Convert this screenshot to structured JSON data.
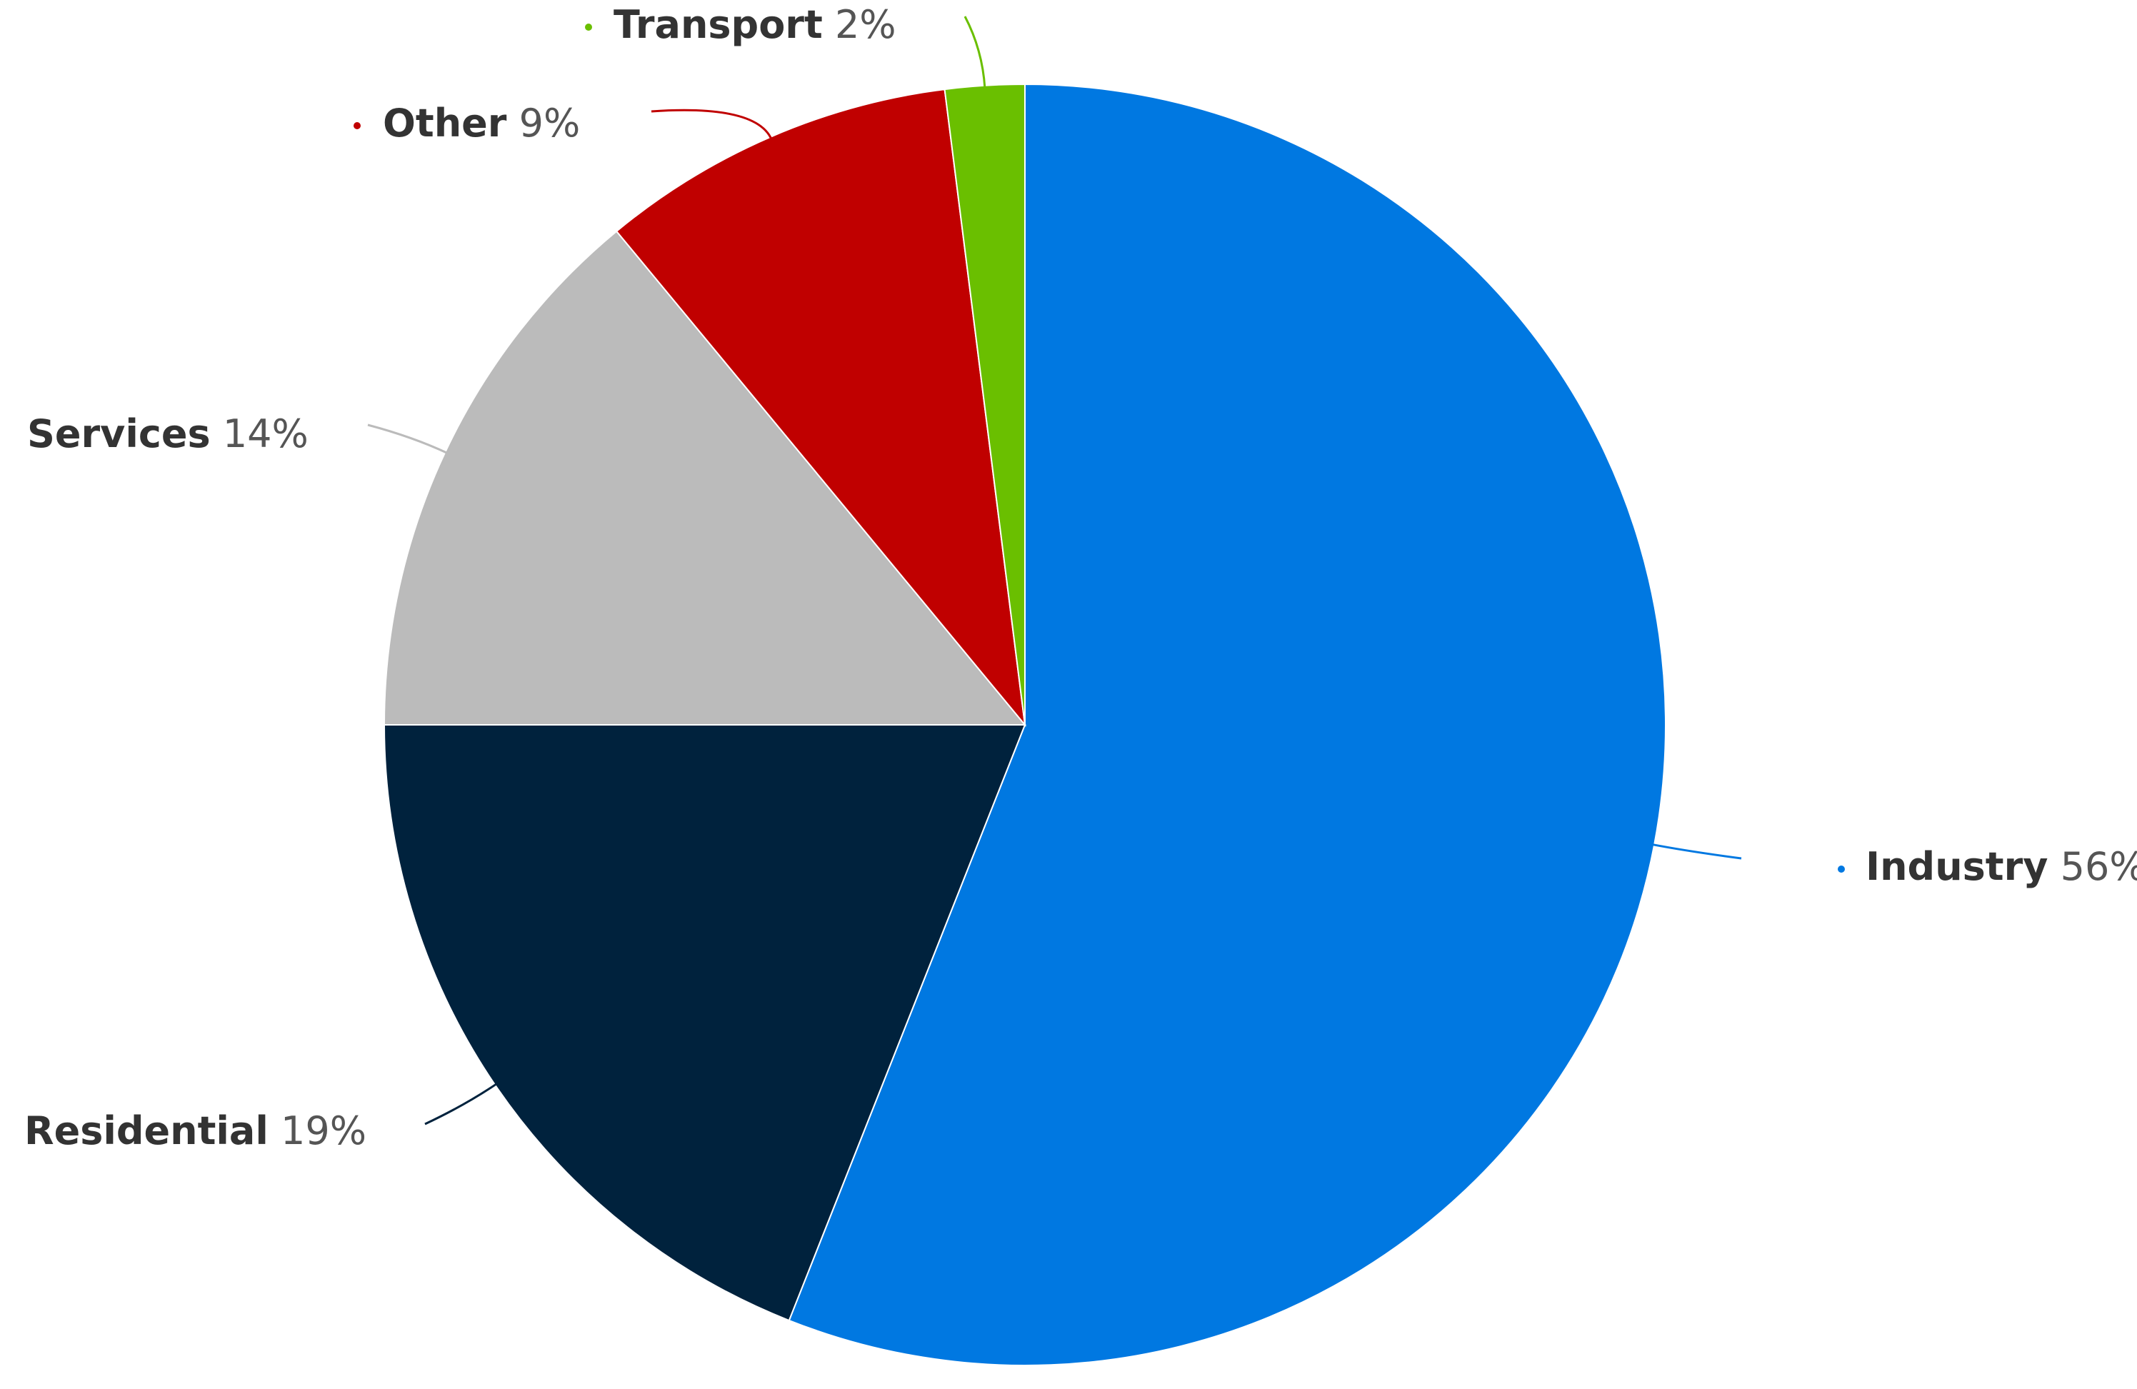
{
  "chart_data": {
    "type": "pie",
    "categories": [
      "Industry",
      "Residential",
      "Services",
      "Other",
      "Transport"
    ],
    "values": [
      56,
      19,
      14,
      9,
      2
    ],
    "value_labels": [
      "56%",
      "19%",
      "14%",
      "9%",
      "2%"
    ],
    "colors": [
      "#0078e1",
      "#00223d",
      "#bbbbbb",
      "#c00000",
      "#6abf00"
    ],
    "start_angle": "top",
    "direction": "clockwise"
  }
}
